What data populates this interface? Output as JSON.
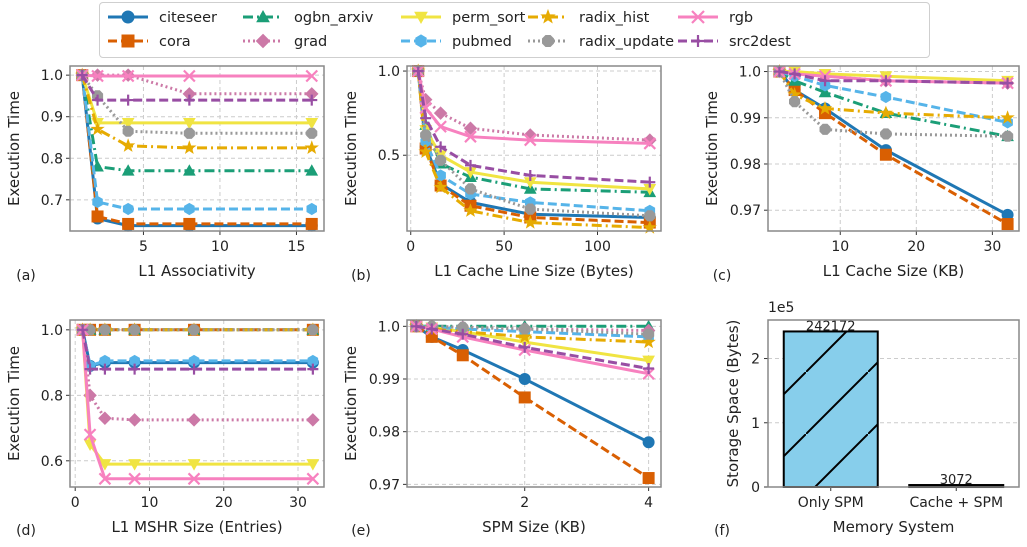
{
  "legend": [
    {
      "name": "citeseer",
      "color": "#1f77b4"
    },
    {
      "name": "cora",
      "color": "#d95f02"
    },
    {
      "name": "ogbn_arxiv",
      "color": "#1b9e77"
    },
    {
      "name": "grad",
      "color": "#cc79a7"
    },
    {
      "name": "perm_sort",
      "color": "#f0e442"
    },
    {
      "name": "pubmed",
      "color": "#56b4e9"
    },
    {
      "name": "radix_hist",
      "color": "#e6ab02"
    },
    {
      "name": "radix_update",
      "color": "#999999"
    },
    {
      "name": "rgb",
      "color": "#f781bf"
    },
    {
      "name": "src2dest",
      "color": "#984ea3"
    }
  ],
  "chart_data": [
    {
      "panel": "(a)",
      "type": "line",
      "xlabel": "L1 Associativity",
      "ylabel": "Execution Time",
      "xlim": [
        0.2,
        16.8
      ],
      "ylim": [
        0.625,
        1.022
      ],
      "xticks": [
        5,
        10,
        15
      ],
      "yticks": [
        0.7,
        0.8,
        0.9,
        1.0
      ],
      "x": [
        1,
        2,
        4,
        8,
        16
      ],
      "series": [
        {
          "name": "citeseer",
          "values": [
            1.0,
            0.655,
            0.638,
            0.638,
            0.638
          ]
        },
        {
          "name": "cora",
          "values": [
            1.0,
            0.66,
            0.642,
            0.642,
            0.642
          ]
        },
        {
          "name": "ogbn_arxiv",
          "values": [
            1.0,
            0.78,
            0.77,
            0.77,
            0.77
          ]
        },
        {
          "name": "grad",
          "values": [
            1.0,
            1.0,
            1.0,
            0.955,
            0.955
          ]
        },
        {
          "name": "perm_sort",
          "values": [
            1.0,
            0.885,
            0.885,
            0.885,
            0.885
          ]
        },
        {
          "name": "pubmed",
          "values": [
            1.0,
            0.695,
            0.678,
            0.678,
            0.678
          ]
        },
        {
          "name": "radix_hist",
          "values": [
            1.0,
            0.87,
            0.83,
            0.825,
            0.825
          ]
        },
        {
          "name": "radix_update",
          "values": [
            1.0,
            0.95,
            0.865,
            0.86,
            0.86
          ]
        },
        {
          "name": "rgb",
          "values": [
            1.0,
            0.998,
            0.998,
            0.998,
            0.998
          ]
        },
        {
          "name": "src2dest",
          "values": [
            1.0,
            0.94,
            0.94,
            0.94,
            0.94
          ]
        }
      ]
    },
    {
      "panel": "(b)",
      "type": "line",
      "xlabel": "L1 Cache Line Size (Bytes)",
      "ylabel": "Execution Time",
      "xlim": [
        -2,
        134
      ],
      "ylim": [
        0.05,
        1.03
      ],
      "xticks": [
        0,
        50,
        100
      ],
      "yticks": [
        0.5,
        1.0
      ],
      "x": [
        4,
        8,
        16,
        32,
        64,
        128
      ],
      "series": [
        {
          "name": "citeseer",
          "values": [
            1.0,
            0.55,
            0.33,
            0.22,
            0.15,
            0.13
          ]
        },
        {
          "name": "cora",
          "values": [
            1.0,
            0.54,
            0.32,
            0.2,
            0.13,
            0.1
          ]
        },
        {
          "name": "ogbn_arxiv",
          "values": [
            1.0,
            0.68,
            0.45,
            0.37,
            0.3,
            0.28
          ]
        },
        {
          "name": "grad",
          "values": [
            1.0,
            0.83,
            0.75,
            0.66,
            0.62,
            0.59
          ]
        },
        {
          "name": "perm_sort",
          "values": [
            1.0,
            0.65,
            0.5,
            0.4,
            0.34,
            0.3
          ]
        },
        {
          "name": "pubmed",
          "values": [
            1.0,
            0.58,
            0.38,
            0.27,
            0.22,
            0.17
          ]
        },
        {
          "name": "radix_hist",
          "values": [
            1.0,
            0.52,
            0.31,
            0.17,
            0.1,
            0.07
          ]
        },
        {
          "name": "radix_update",
          "values": [
            1.0,
            0.62,
            0.47,
            0.3,
            0.18,
            0.14
          ]
        },
        {
          "name": "rgb",
          "values": [
            1.0,
            0.78,
            0.67,
            0.61,
            0.59,
            0.57
          ]
        },
        {
          "name": "src2dest",
          "values": [
            1.0,
            0.72,
            0.55,
            0.44,
            0.38,
            0.34
          ]
        }
      ]
    },
    {
      "panel": "(c)",
      "type": "line",
      "xlabel": "L1 Cache Size (KB)",
      "ylabel": "Execution Time",
      "xlim": [
        0.5,
        33.5
      ],
      "ylim": [
        0.9655,
        1.0012
      ],
      "xticks": [
        10,
        20,
        30
      ],
      "yticks": [
        0.97,
        0.98,
        0.99,
        1.0
      ],
      "x": [
        2,
        4,
        8,
        16,
        32
      ],
      "series": [
        {
          "name": "citeseer",
          "values": [
            1.0,
            0.996,
            0.992,
            0.983,
            0.969
          ]
        },
        {
          "name": "cora",
          "values": [
            1.0,
            0.996,
            0.991,
            0.982,
            0.967
          ]
        },
        {
          "name": "ogbn_arxiv",
          "values": [
            1.0,
            0.998,
            0.9955,
            0.991,
            0.986
          ]
        },
        {
          "name": "grad",
          "values": [
            1.0,
            0.9995,
            0.999,
            0.998,
            0.9975
          ]
        },
        {
          "name": "perm_sort",
          "values": [
            1.0,
            1.0,
            0.9995,
            0.999,
            0.998
          ]
        },
        {
          "name": "pubmed",
          "values": [
            1.0,
            0.999,
            0.997,
            0.9945,
            0.989
          ]
        },
        {
          "name": "radix_hist",
          "values": [
            1.0,
            0.995,
            0.992,
            0.991,
            0.99
          ]
        },
        {
          "name": "radix_update",
          "values": [
            1.0,
            0.9935,
            0.9875,
            0.9865,
            0.986
          ]
        },
        {
          "name": "rgb",
          "values": [
            1.0,
            0.9995,
            0.999,
            0.998,
            0.9975
          ]
        },
        {
          "name": "src2dest",
          "values": [
            1.0,
            0.9995,
            0.998,
            0.998,
            0.9975
          ]
        }
      ]
    },
    {
      "panel": "(d)",
      "type": "line",
      "xlabel": "L1 MSHR Size (Entries)",
      "ylabel": "Execution Time",
      "xlim": [
        -0.7,
        33.5
      ],
      "ylim": [
        0.52,
        1.03
      ],
      "xticks": [
        0,
        10,
        20,
        30
      ],
      "yticks": [
        0.6,
        0.8,
        1.0
      ],
      "x": [
        1,
        2,
        4,
        8,
        16,
        32
      ],
      "series": [
        {
          "name": "citeseer",
          "values": [
            1.0,
            0.89,
            0.9,
            0.9,
            0.9,
            0.9
          ]
        },
        {
          "name": "cora",
          "values": [
            1.0,
            1.0,
            1.0,
            1.0,
            1.0,
            1.0
          ]
        },
        {
          "name": "ogbn_arxiv",
          "values": [
            1.0,
            1.0,
            1.0,
            1.0,
            1.0,
            1.0
          ]
        },
        {
          "name": "grad",
          "values": [
            1.0,
            0.8,
            0.73,
            0.725,
            0.725,
            0.725
          ]
        },
        {
          "name": "perm_sort",
          "values": [
            1.0,
            0.65,
            0.59,
            0.59,
            0.59,
            0.59
          ]
        },
        {
          "name": "pubmed",
          "values": [
            1.0,
            0.89,
            0.905,
            0.905,
            0.905,
            0.905
          ]
        },
        {
          "name": "radix_hist",
          "values": [
            1.0,
            1.0,
            1.0,
            1.0,
            1.0,
            1.0
          ]
        },
        {
          "name": "radix_update",
          "values": [
            1.0,
            1.0,
            1.0,
            1.0,
            1.0,
            1.0
          ]
        },
        {
          "name": "rgb",
          "values": [
            1.0,
            0.68,
            0.545,
            0.545,
            0.545,
            0.545
          ]
        },
        {
          "name": "src2dest",
          "values": [
            1.0,
            0.88,
            0.88,
            0.88,
            0.88,
            0.88
          ]
        }
      ]
    },
    {
      "panel": "(e)",
      "type": "line",
      "xlabel": "SPM Size (KB)",
      "ylabel": "Execution Time",
      "xlim": [
        0.1,
        4.2
      ],
      "ylim": [
        0.9695,
        1.0012
      ],
      "xticks": [
        2,
        4
      ],
      "yticks": [
        0.97,
        0.98,
        0.99,
        1.0
      ],
      "x": [
        0.25,
        0.5,
        1,
        2,
        4
      ],
      "series": [
        {
          "name": "citeseer",
          "values": [
            1.0,
            0.998,
            0.9955,
            0.99,
            0.978
          ]
        },
        {
          "name": "cora",
          "values": [
            1.0,
            0.998,
            0.9945,
            0.9865,
            0.9712
          ]
        },
        {
          "name": "ogbn_arxiv",
          "values": [
            1.0,
            1.0,
            1.0,
            1.0,
            1.0
          ]
        },
        {
          "name": "grad",
          "values": [
            1.0,
            1.0,
            0.9998,
            0.9995,
            0.9992
          ]
        },
        {
          "name": "perm_sort",
          "values": [
            1.0,
            0.9998,
            0.999,
            0.997,
            0.9935
          ]
        },
        {
          "name": "pubmed",
          "values": [
            1.0,
            0.9998,
            0.9995,
            0.999,
            0.998
          ]
        },
        {
          "name": "radix_hist",
          "values": [
            1.0,
            0.9995,
            0.999,
            0.998,
            0.997
          ]
        },
        {
          "name": "radix_update",
          "values": [
            1.0,
            1.0,
            0.9998,
            0.9995,
            0.9985
          ]
        },
        {
          "name": "rgb",
          "values": [
            1.0,
            0.9995,
            0.998,
            0.9955,
            0.991
          ]
        },
        {
          "name": "src2dest",
          "values": [
            1.0,
            0.9995,
            0.9985,
            0.996,
            0.992
          ]
        }
      ]
    },
    {
      "panel": "(f)",
      "type": "bar",
      "xlabel": "Memory System",
      "ylabel": "Storage Space (Bytes)",
      "scale_label": "1e5",
      "ylim": [
        0,
        2.6
      ],
      "yticks": [
        0,
        1,
        2
      ],
      "categories": [
        "Only SPM",
        "Cache + SPM"
      ],
      "values": [
        242172,
        3072
      ],
      "value_labels": [
        "242172",
        "3072"
      ],
      "bar_color": "#87ceeb"
    }
  ]
}
